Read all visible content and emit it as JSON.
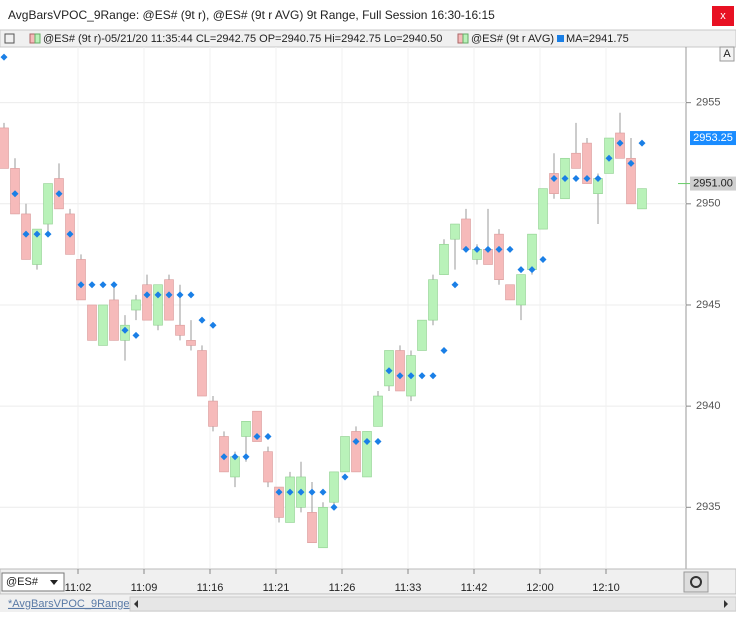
{
  "window": {
    "title": "AvgBarsVPOC_9Range: @ES# (9t r), @ES# (9t r AVG) 9t Range, Full Session 16:30-16:15",
    "close": "x",
    "legend_main": "@ES# (9t r)-05/21/20 11:35:44 CL=2942.75 OP=2940.75 Hi=2942.75 Lo=2940.50",
    "legend_avg": "@ES# (9t r AVG)",
    "legend_ma": "MA=2941.75",
    "axis_button": "A",
    "symbol": "@ES#",
    "tab": "*AvgBarsVPOC_9Range"
  },
  "chart_data": {
    "type": "candlestick",
    "categories": [
      null,
      null,
      null,
      null,
      null,
      null,
      null,
      "11:02",
      null,
      null,
      null,
      null,
      null,
      "11:09",
      null,
      null,
      null,
      null,
      null,
      "11:16",
      null,
      null,
      null,
      null,
      null,
      "11:21",
      null,
      null,
      null,
      null,
      null,
      "11:26",
      null,
      null,
      null,
      null,
      null,
      "11:33",
      null,
      null,
      null,
      null,
      null,
      "11:42",
      null,
      null,
      null,
      null,
      null,
      "12:00",
      null,
      null,
      null,
      null,
      null,
      "12:10",
      null,
      null,
      null
    ],
    "open": [
      2953.75,
      2951.75,
      2949.5,
      2947.0,
      2949.0,
      2951.25,
      2949.5,
      2947.25,
      2945.0,
      2943.0,
      2945.25,
      2943.25,
      2944.75,
      2946.0,
      2944.0,
      2946.25,
      2944.0,
      2943.25,
      2942.75,
      2940.25,
      2938.5,
      2936.5,
      2938.5,
      2939.75,
      2937.75,
      2936.0,
      2934.25,
      2935.0,
      2934.75,
      2933.0,
      2935.25,
      2936.75,
      2938.75,
      2936.5,
      2939.0,
      2941.0,
      2942.75,
      2940.5,
      2942.75,
      2944.25,
      2946.5,
      2948.25,
      2949.25,
      2947.25,
      2947.75,
      2948.5,
      2946.0,
      2945.0,
      2946.75,
      2948.75,
      2951.5,
      2950.25,
      2952.5,
      2953.0,
      2950.5,
      2951.5,
      2953.5,
      2952.25,
      2949.75
    ],
    "high": [
      2954.0,
      2952.25,
      2950.0,
      2948.75,
      2951.0,
      2952.0,
      2949.75,
      2947.5,
      2945.0,
      2945.0,
      2946.0,
      2944.5,
      2945.5,
      2946.5,
      2946.0,
      2946.5,
      2946.0,
      2944.25,
      2943.0,
      2940.5,
      2938.75,
      2937.75,
      2939.25,
      2939.75,
      2938.0,
      2936.0,
      2936.75,
      2937.25,
      2936.25,
      2935.25,
      2936.75,
      2938.5,
      2939.0,
      2938.75,
      2940.75,
      2942.75,
      2943.0,
      2942.75,
      2944.25,
      2946.5,
      2948.25,
      2949.0,
      2949.75,
      2948.0,
      2949.75,
      2948.75,
      2946.0,
      2946.5,
      2948.5,
      2950.75,
      2952.5,
      2952.25,
      2954.0,
      2953.25,
      2951.5,
      2953.25,
      2954.5,
      2953.25,
      2950.75
    ],
    "low": [
      2951.75,
      2949.5,
      2947.25,
      2946.75,
      2948.5,
      2949.75,
      2947.5,
      2945.25,
      2943.25,
      2943.0,
      2943.25,
      2942.25,
      2944.25,
      2944.25,
      2943.75,
      2944.25,
      2943.25,
      2942.75,
      2940.5,
      2938.75,
      2936.75,
      2936.0,
      2937.25,
      2938.25,
      2936.0,
      2934.25,
      2934.25,
      2934.75,
      2933.25,
      2933.0,
      2935.0,
      2936.75,
      2936.75,
      2936.5,
      2939.0,
      2940.75,
      2940.75,
      2940.25,
      2942.75,
      2944.0,
      2946.5,
      2946.75,
      2947.75,
      2947.0,
      2947.0,
      2946.0,
      2945.25,
      2944.25,
      2946.5,
      2948.75,
      2950.25,
      2950.25,
      2951.75,
      2951.0,
      2949.0,
      2951.5,
      2952.25,
      2950.0,
      2949.75
    ],
    "close": [
      2951.75,
      2949.5,
      2947.25,
      2948.75,
      2951.0,
      2949.75,
      2947.5,
      2945.25,
      2943.25,
      2945.0,
      2943.25,
      2944.0,
      2945.25,
      2944.25,
      2946.0,
      2944.25,
      2943.5,
      2943.0,
      2940.5,
      2939.0,
      2936.75,
      2937.5,
      2939.25,
      2938.25,
      2936.25,
      2934.5,
      2936.5,
      2936.5,
      2933.25,
      2935.0,
      2936.75,
      2938.5,
      2936.75,
      2938.75,
      2940.5,
      2942.75,
      2940.75,
      2942.5,
      2944.25,
      2946.25,
      2948.0,
      2949.0,
      2947.75,
      2947.75,
      2947.0,
      2946.25,
      2945.25,
      2946.5,
      2948.5,
      2950.75,
      2950.5,
      2952.25,
      2951.75,
      2951.0,
      2951.25,
      2953.25,
      2952.25,
      2950.0,
      2950.75
    ],
    "vpoc": [
      2957.25,
      2950.5,
      2948.5,
      2948.5,
      2948.5,
      2950.5,
      2948.5,
      2946.0,
      2946.0,
      2946.0,
      2946.0,
      2943.75,
      2943.5,
      2945.5,
      2945.5,
      2945.5,
      2945.5,
      2945.5,
      2944.25,
      2944.0,
      2937.5,
      2937.5,
      2937.5,
      2938.5,
      2938.5,
      2935.75,
      2935.75,
      2935.75,
      2935.75,
      2935.75,
      2935.0,
      2936.5,
      2938.25,
      2938.25,
      2938.25,
      2941.75,
      2941.5,
      2941.5,
      2941.5,
      2941.5,
      2942.75,
      2946.0,
      2947.75,
      2947.75,
      2947.75,
      2947.75,
      2947.75,
      2946.75,
      2946.75,
      2947.25,
      2951.25,
      2951.25,
      2951.25,
      2951.25,
      2951.25,
      2952.25,
      2953.0,
      2952.0,
      2953.0
    ],
    "up_color": "#b9f2b9",
    "down_color": "#f6baba",
    "vpoc_color": "#1a7fe6",
    "ylim": [
      2932.0,
      2957.75
    ],
    "yticks": [
      2935,
      2940,
      2945,
      2950,
      2955
    ],
    "grid": true,
    "price_markers": [
      {
        "value": 2953.25,
        "color": "#1a8cff"
      },
      {
        "value": 2951,
        "label": "2951.00",
        "color": "#cfcfcf"
      }
    ]
  }
}
